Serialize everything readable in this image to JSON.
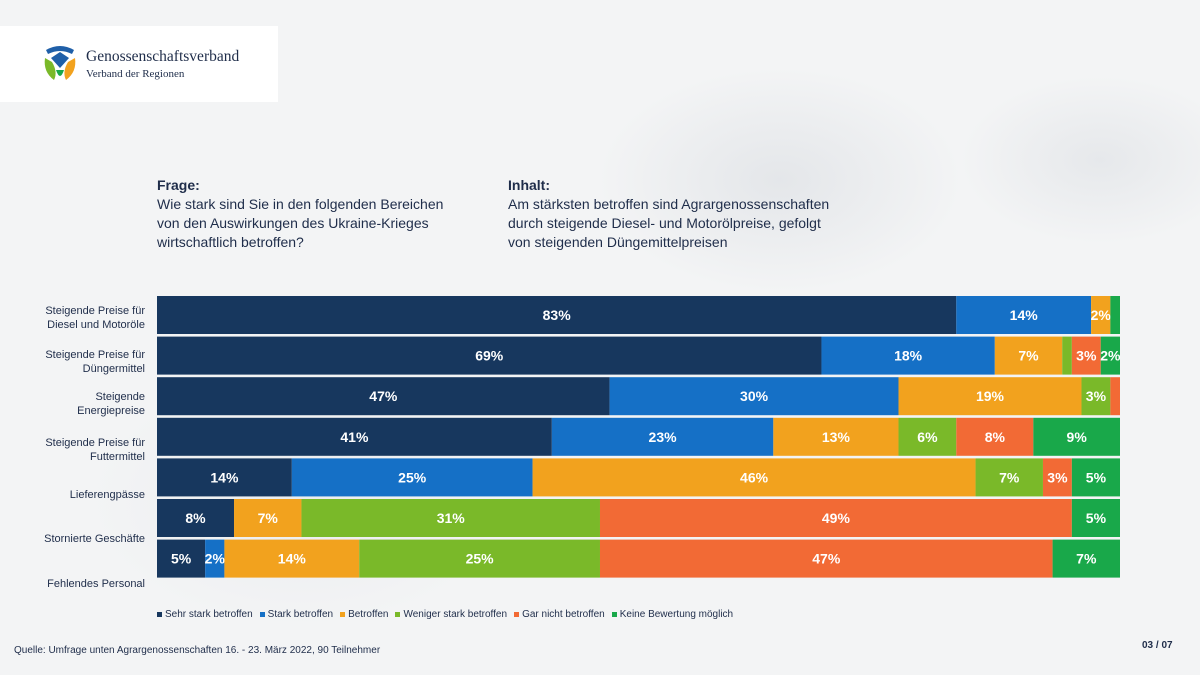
{
  "logo": {
    "title": "Genossenschaftsverband",
    "subtitle": "Verband der Regionen"
  },
  "question": {
    "heading": "Frage:",
    "lines": [
      "Wie stark sind Sie in den folgenden Bereichen",
      "von den Auswirkungen des Ukraine-Krieges",
      "wirtschaftlich betroffen?"
    ]
  },
  "content": {
    "heading": "Inhalt:",
    "lines": [
      "Am stärksten betroffen sind Agrargenossenschaften",
      "durch steigende Diesel- und Motorölpreise, gefolgt",
      "von steigenden Düngemittelpreisen"
    ]
  },
  "chart_data": {
    "type": "bar",
    "orientation": "horizontal",
    "stacked": "percent",
    "categories": [
      [
        "Steigende Preise für",
        "Diesel und Motoröle"
      ],
      [
        "Steigende Preise für",
        "Düngermittel"
      ],
      [
        "Steigende",
        "Energiepreise"
      ],
      [
        "Steigende Preise für",
        "Futtermittel"
      ],
      [
        "Lieferengpässe"
      ],
      [
        "Stornierte Geschäfte"
      ],
      [
        "Fehlendes Personal"
      ]
    ],
    "series": [
      {
        "name": "Sehr stark betroffen",
        "color": "#17375e",
        "values": [
          83,
          69,
          47,
          41,
          14,
          8,
          5
        ]
      },
      {
        "name": "Stark betroffen",
        "color": "#1570c6",
        "values": [
          14,
          18,
          30,
          23,
          25,
          0,
          2
        ]
      },
      {
        "name": "Betroffen",
        "color": "#f2a21e",
        "values": [
          2,
          7,
          19,
          13,
          46,
          7,
          14
        ]
      },
      {
        "name": "Weniger stark betroffen",
        "color": "#7ab929",
        "values": [
          0,
          1,
          3,
          6,
          7,
          31,
          25
        ]
      },
      {
        "name": "Gar nicht betroffen",
        "color": "#f26a35",
        "values": [
          0,
          3,
          1,
          8,
          3,
          49,
          47
        ]
      },
      {
        "name": "Keine Bewertung möglich",
        "color": "#19a84a",
        "values": [
          1,
          2,
          0,
          9,
          5,
          5,
          7
        ]
      }
    ],
    "data_labels": [
      [
        "83%",
        "14%",
        "2%",
        "",
        "",
        ""
      ],
      [
        "69%",
        "18%",
        "7%",
        "",
        "3%",
        "2%"
      ],
      [
        "47%",
        "30%",
        "19%",
        "3%",
        "",
        ""
      ],
      [
        "41%",
        "23%",
        "13%",
        "6%",
        "8%",
        "9%"
      ],
      [
        "14%",
        "25%",
        "46%",
        "7%",
        "3%",
        "5%"
      ],
      [
        "8%",
        "",
        "7%",
        "31%",
        "49%",
        "5%"
      ],
      [
        "5%",
        "2%",
        "14%",
        "25%",
        "47%",
        "7%"
      ]
    ],
    "xlim": [
      0,
      100
    ],
    "legend_position": "bottom"
  },
  "source": "Quelle: Umfrage unten Agrargenossenschaften 16. - 23. März 2022, 90 Teilnehmer",
  "page_number": "03 / 07"
}
